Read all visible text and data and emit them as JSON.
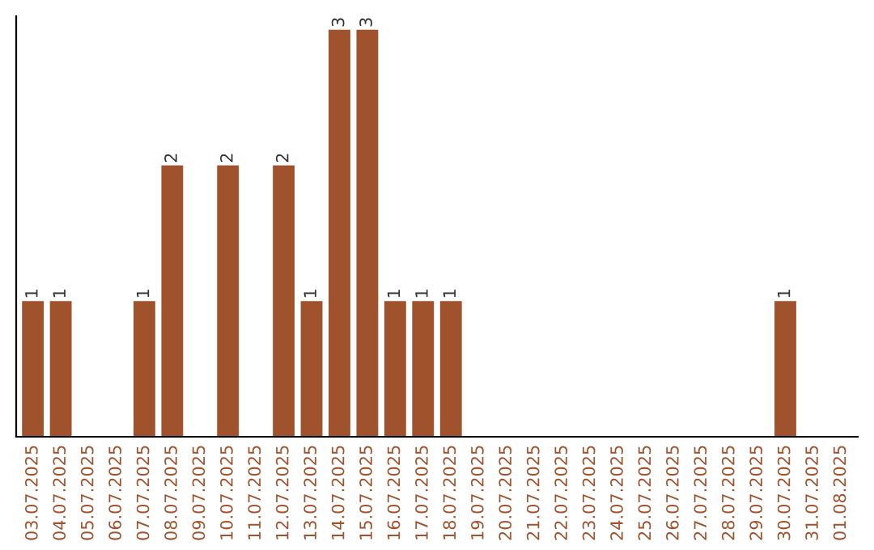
{
  "chart_data": {
    "type": "bar",
    "categories": [
      "03.07.2025",
      "04.07.2025",
      "05.07.2025",
      "06.07.2025",
      "07.07.2025",
      "08.07.2025",
      "09.07.2025",
      "10.07.2025",
      "11.07.2025",
      "12.07.2025",
      "13.07.2025",
      "14.07.2025",
      "15.07.2025",
      "16.07.2025",
      "17.07.2025",
      "18.07.2025",
      "19.07.2025",
      "20.07.2025",
      "21.07.2025",
      "22.07.2025",
      "23.07.2025",
      "24.07.2025",
      "25.07.2025",
      "26.07.2025",
      "27.07.2025",
      "28.07.2025",
      "29.07.2025",
      "30.07.2025",
      "31.07.2025",
      "01.08.2025"
    ],
    "values": [
      1,
      1,
      0,
      0,
      1,
      2,
      0,
      2,
      0,
      2,
      1,
      3,
      3,
      1,
      1,
      1,
      0,
      0,
      0,
      0,
      0,
      0,
      0,
      0,
      0,
      0,
      0,
      1,
      0,
      0
    ],
    "value_labels": [
      "1",
      "1",
      null,
      null,
      "1",
      "2",
      null,
      "2",
      null,
      "2",
      "1",
      "3",
      "3",
      "1",
      "1",
      "1",
      null,
      null,
      null,
      null,
      null,
      null,
      null,
      null,
      null,
      null,
      null,
      "1",
      null,
      null
    ],
    "color": "#a0522d",
    "ylim": [
      0,
      3.1
    ],
    "tick_labels": "x",
    "grid": false,
    "legend": false
  }
}
